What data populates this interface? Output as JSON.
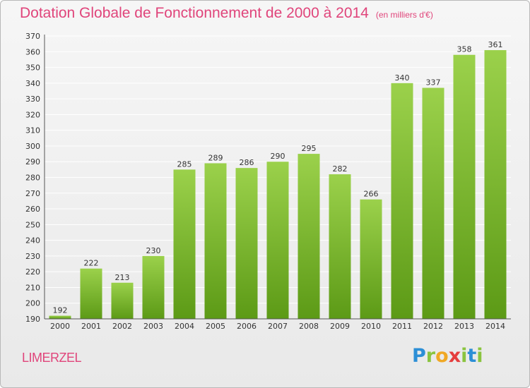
{
  "header": {
    "title": "Dotation Globale de Fonctionnement de 2000 à 2014",
    "subtitle": "(en milliers d'€)"
  },
  "footer": {
    "commune": "LIMERZEL",
    "logo_letters": [
      "P",
      "r",
      "o",
      "x",
      "i",
      "t",
      "i"
    ],
    "logo_colors": [
      "#2c8fd6",
      "#8ac43f",
      "#f0a824",
      "#e53d3d",
      "#8ac43f",
      "#2c8fd6",
      "#8ac43f"
    ]
  },
  "colors": {
    "bar_light": "#9bd14b",
    "bar_dark": "#5c9a16",
    "grid": "#ffffff",
    "text_accent": "#e0457b"
  },
  "chart_data": {
    "type": "bar",
    "title": "Dotation Globale de Fonctionnement de 2000 à 2014",
    "subtitle": "(en milliers d'€)",
    "categories": [
      "2000",
      "2001",
      "2002",
      "2003",
      "2004",
      "2005",
      "2006",
      "2007",
      "2008",
      "2009",
      "2010",
      "2011",
      "2012",
      "2013",
      "2014"
    ],
    "values": [
      192,
      222,
      213,
      230,
      285,
      289,
      286,
      290,
      295,
      282,
      266,
      340,
      337,
      358,
      361
    ],
    "ylim": [
      190,
      370
    ],
    "yticks": [
      190,
      200,
      210,
      220,
      230,
      240,
      250,
      260,
      270,
      280,
      290,
      300,
      310,
      320,
      330,
      340,
      350,
      360,
      370
    ],
    "grid": true,
    "legend": "none"
  }
}
